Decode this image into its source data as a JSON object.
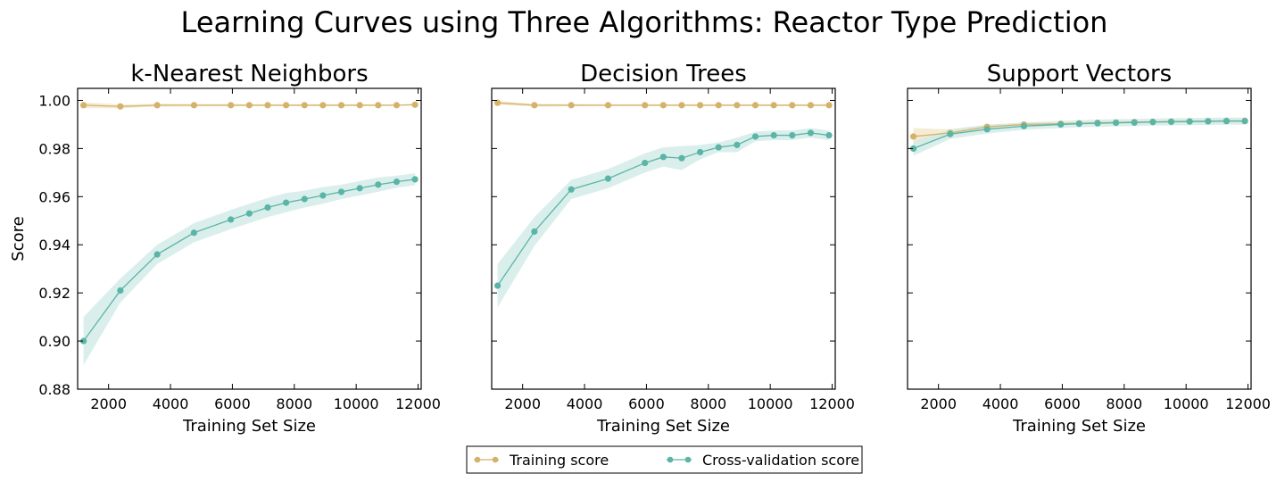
{
  "figure": {
    "suptitle": "Learning Curves using Three Algorithms: Reactor Type Prediction"
  },
  "colors": {
    "training": "#d4b26b",
    "cv": "#5bb5a7",
    "training_band": "#f3e6c6",
    "cv_band": "#cdeae5"
  },
  "legend": {
    "placement": "bottom-center",
    "entries": [
      "Training score",
      "Cross-validation score"
    ]
  },
  "chart_data": [
    {
      "type": "line",
      "title": "k-Nearest Neighbors",
      "xlabel": "Training Set Size",
      "ylabel": "Score",
      "xlim": [
        1000,
        12100
      ],
      "ylim": [
        0.88,
        1.005
      ],
      "xticks": [
        2000,
        4000,
        6000,
        8000,
        10000,
        12000
      ],
      "yticks": [
        "0.88",
        "0.90",
        "0.92",
        "0.94",
        "0.96",
        "0.98",
        "1.00"
      ],
      "x": [
        1190,
        2380,
        3570,
        4760,
        5950,
        6545,
        7140,
        7735,
        8330,
        8925,
        9520,
        10115,
        10710,
        11305,
        11900
      ],
      "series": [
        {
          "name": "Training score",
          "values": [
            0.998,
            0.9975,
            0.998,
            0.998,
            0.998,
            0.998,
            0.998,
            0.998,
            0.998,
            0.998,
            0.998,
            0.998,
            0.998,
            0.998,
            0.9982
          ],
          "band": [
            0.0012,
            0.0008,
            0.0006,
            0.0005,
            0.0005,
            0.0004,
            0.0004,
            0.0004,
            0.0004,
            0.0004,
            0.0004,
            0.0004,
            0.0004,
            0.0003,
            0.0003
          ]
        },
        {
          "name": "Cross-validation score",
          "values": [
            0.9,
            0.921,
            0.936,
            0.945,
            0.9505,
            0.953,
            0.9555,
            0.9575,
            0.959,
            0.9605,
            0.962,
            0.9635,
            0.965,
            0.9662,
            0.9672
          ],
          "band": [
            0.01,
            0.005,
            0.004,
            0.004,
            0.004,
            0.004,
            0.004,
            0.004,
            0.0035,
            0.0035,
            0.003,
            0.003,
            0.003,
            0.0025,
            0.0025
          ]
        }
      ]
    },
    {
      "type": "line",
      "title": "Decision Trees",
      "xlabel": "Training Set Size",
      "ylabel": "",
      "xlim": [
        1000,
        12100
      ],
      "ylim": [
        0.88,
        1.005
      ],
      "xticks": [
        2000,
        4000,
        6000,
        8000,
        10000,
        12000
      ],
      "yticks": [
        "0.88",
        "0.90",
        "0.92",
        "0.94",
        "0.96",
        "0.98",
        "1.00"
      ],
      "x": [
        1190,
        2380,
        3570,
        4760,
        5950,
        6545,
        7140,
        7735,
        8330,
        8925,
        9520,
        10115,
        10710,
        11305,
        11900
      ],
      "series": [
        {
          "name": "Training score",
          "values": [
            0.999,
            0.998,
            0.998,
            0.998,
            0.998,
            0.998,
            0.998,
            0.998,
            0.998,
            0.998,
            0.998,
            0.998,
            0.998,
            0.998,
            0.998
          ],
          "band": [
            0.0008,
            0.0006,
            0.0005,
            0.0004,
            0.0004,
            0.0004,
            0.0004,
            0.0004,
            0.0004,
            0.0004,
            0.0004,
            0.0004,
            0.0004,
            0.0004,
            0.0004
          ]
        },
        {
          "name": "Cross-validation score",
          "values": [
            0.923,
            0.9455,
            0.963,
            0.9675,
            0.974,
            0.9765,
            0.976,
            0.9785,
            0.9805,
            0.9815,
            0.985,
            0.9855,
            0.9855,
            0.9865,
            0.9855
          ],
          "band": [
            0.009,
            0.006,
            0.004,
            0.004,
            0.004,
            0.004,
            0.005,
            0.003,
            0.002,
            0.003,
            0.002,
            0.002,
            0.002,
            0.002,
            0.002
          ]
        }
      ]
    },
    {
      "type": "line",
      "title": "Support Vectors",
      "xlabel": "Training Set Size",
      "ylabel": "",
      "xlim": [
        1000,
        12100
      ],
      "ylim": [
        0.88,
        1.005
      ],
      "xticks": [
        2000,
        4000,
        6000,
        8000,
        10000,
        12000
      ],
      "yticks": [
        "0.88",
        "0.90",
        "0.92",
        "0.94",
        "0.96",
        "0.98",
        "1.00"
      ],
      "x": [
        1190,
        2380,
        3570,
        4760,
        5950,
        6545,
        7140,
        7735,
        8330,
        8925,
        9520,
        10115,
        10710,
        11305,
        11900
      ],
      "series": [
        {
          "name": "Training score",
          "values": [
            0.985,
            0.9865,
            0.989,
            0.99,
            0.9903,
            0.9905,
            0.9907,
            0.9908,
            0.991,
            0.9911,
            0.9912,
            0.9913,
            0.9914,
            0.9915,
            0.9915
          ],
          "band": [
            0.0035,
            0.0015,
            0.001,
            0.0008,
            0.0006,
            0.0006,
            0.0005,
            0.0005,
            0.0005,
            0.0005,
            0.0005,
            0.0005,
            0.0004,
            0.0004,
            0.0004
          ]
        },
        {
          "name": "Cross-validation score",
          "values": [
            0.98,
            0.986,
            0.988,
            0.9893,
            0.99,
            0.9903,
            0.9905,
            0.9907,
            0.9908,
            0.991,
            0.9911,
            0.9912,
            0.9913,
            0.9914,
            0.9914
          ],
          "band": [
            0.003,
            0.002,
            0.0018,
            0.0015,
            0.0015,
            0.0015,
            0.0015,
            0.0015,
            0.0015,
            0.0015,
            0.0015,
            0.0015,
            0.0015,
            0.0015,
            0.0015
          ]
        }
      ]
    }
  ]
}
